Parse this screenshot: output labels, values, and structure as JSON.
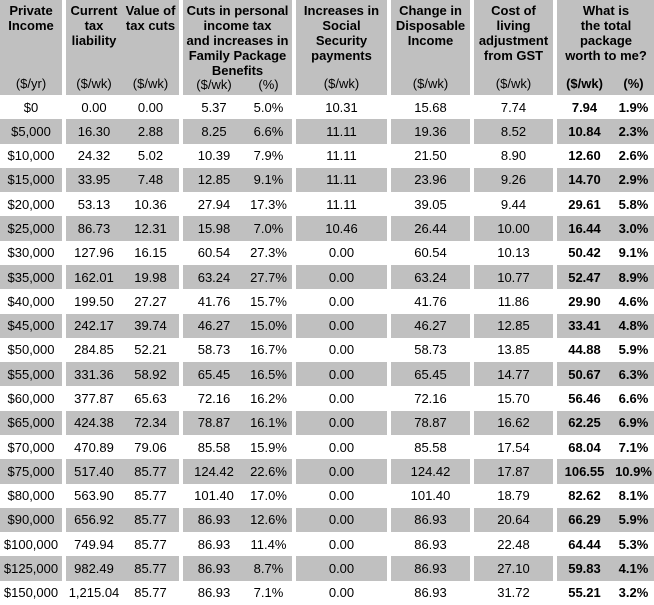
{
  "colors": {
    "band_gray": "#c0c0c0",
    "background": "#ffffff",
    "text": "#000000"
  },
  "table": {
    "header": {
      "groups": [
        {
          "id": "private-income",
          "title": "Private\nIncome",
          "units": [
            "($/yr)"
          ]
        },
        {
          "id": "current-tax",
          "titles": [
            "Current\ntax\nliability",
            "Value of\ntax cuts"
          ],
          "units": [
            "($/wk)",
            "($/wk)"
          ]
        },
        {
          "id": "cuts-family-package",
          "title": "Cuts in personal\nincome tax\nand increases in\nFamily Package\nBenefits",
          "units": [
            "($/wk)",
            "(%)"
          ]
        },
        {
          "id": "social-security",
          "title": "Increases in\nSocial Security\npayments",
          "units": [
            "($/wk)"
          ]
        },
        {
          "id": "disposable-income",
          "title": "Change in\nDisposable\nIncome",
          "units": [
            "($/wk)"
          ]
        },
        {
          "id": "gst-adjustment",
          "title": "Cost of\nliving\nadjustment\nfrom GST",
          "units": [
            "($/wk)"
          ]
        },
        {
          "id": "total-package",
          "title": "What is\nthe total\npackage\nworth to me?",
          "units": [
            "($/wk)",
            "(%)"
          ]
        }
      ]
    },
    "columns": [
      "income",
      "tax_liability",
      "tax_cuts",
      "cuts_wk",
      "cuts_pct",
      "social_security",
      "disposable_income",
      "gst_adjustment",
      "total_wk",
      "total_pct"
    ],
    "rows": [
      [
        "$0",
        "0.00",
        "0.00",
        "5.37",
        "5.0%",
        "10.31",
        "15.68",
        "7.74",
        "7.94",
        "1.9%"
      ],
      [
        "$5,000",
        "16.30",
        "2.88",
        "8.25",
        "6.6%",
        "11.11",
        "19.36",
        "8.52",
        "10.84",
        "2.3%"
      ],
      [
        "$10,000",
        "24.32",
        "5.02",
        "10.39",
        "7.9%",
        "11.11",
        "21.50",
        "8.90",
        "12.60",
        "2.6%"
      ],
      [
        "$15,000",
        "33.95",
        "7.48",
        "12.85",
        "9.1%",
        "11.11",
        "23.96",
        "9.26",
        "14.70",
        "2.9%"
      ],
      [
        "$20,000",
        "53.13",
        "10.36",
        "27.94",
        "17.3%",
        "11.11",
        "39.05",
        "9.44",
        "29.61",
        "5.8%"
      ],
      [
        "$25,000",
        "86.73",
        "12.31",
        "15.98",
        "7.0%",
        "10.46",
        "26.44",
        "10.00",
        "16.44",
        "3.0%"
      ],
      [
        "$30,000",
        "127.96",
        "16.15",
        "60.54",
        "27.3%",
        "0.00",
        "60.54",
        "10.13",
        "50.42",
        "9.1%"
      ],
      [
        "$35,000",
        "162.01",
        "19.98",
        "63.24",
        "27.7%",
        "0.00",
        "63.24",
        "10.77",
        "52.47",
        "8.9%"
      ],
      [
        "$40,000",
        "199.50",
        "27.27",
        "41.76",
        "15.7%",
        "0.00",
        "41.76",
        "11.86",
        "29.90",
        "4.6%"
      ],
      [
        "$45,000",
        "242.17",
        "39.74",
        "46.27",
        "15.0%",
        "0.00",
        "46.27",
        "12.85",
        "33.41",
        "4.8%"
      ],
      [
        "$50,000",
        "284.85",
        "52.21",
        "58.73",
        "16.7%",
        "0.00",
        "58.73",
        "13.85",
        "44.88",
        "5.9%"
      ],
      [
        "$55,000",
        "331.36",
        "58.92",
        "65.45",
        "16.5%",
        "0.00",
        "65.45",
        "14.77",
        "50.67",
        "6.3%"
      ],
      [
        "$60,000",
        "377.87",
        "65.63",
        "72.16",
        "16.2%",
        "0.00",
        "72.16",
        "15.70",
        "56.46",
        "6.6%"
      ],
      [
        "$65,000",
        "424.38",
        "72.34",
        "78.87",
        "16.1%",
        "0.00",
        "78.87",
        "16.62",
        "62.25",
        "6.9%"
      ],
      [
        "$70,000",
        "470.89",
        "79.06",
        "85.58",
        "15.9%",
        "0.00",
        "85.58",
        "17.54",
        "68.04",
        "7.1%"
      ],
      [
        "$75,000",
        "517.40",
        "85.77",
        "124.42",
        "22.6%",
        "0.00",
        "124.42",
        "17.87",
        "106.55",
        "10.9%"
      ],
      [
        "$80,000",
        "563.90",
        "85.77",
        "101.40",
        "17.0%",
        "0.00",
        "101.40",
        "18.79",
        "82.62",
        "8.1%"
      ],
      [
        "$90,000",
        "656.92",
        "85.77",
        "86.93",
        "12.6%",
        "0.00",
        "86.93",
        "20.64",
        "66.29",
        "5.9%"
      ],
      [
        "$100,000",
        "749.94",
        "85.77",
        "86.93",
        "11.4%",
        "0.00",
        "86.93",
        "22.48",
        "64.44",
        "5.3%"
      ],
      [
        "$125,000",
        "982.49",
        "85.77",
        "86.93",
        "8.7%",
        "0.00",
        "86.93",
        "27.10",
        "59.83",
        "4.1%"
      ],
      [
        "$150,000",
        "1,215.04",
        "85.77",
        "86.93",
        "7.1%",
        "0.00",
        "86.93",
        "31.72",
        "55.21",
        "3.2%"
      ]
    ]
  }
}
